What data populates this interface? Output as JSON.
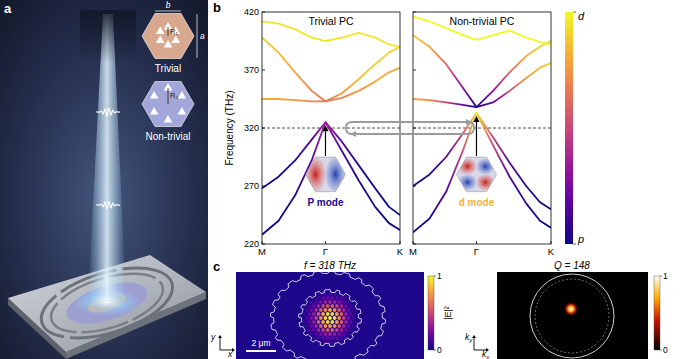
{
  "figure": {
    "panel_labels": [
      "a",
      "b",
      "c"
    ]
  },
  "panel_a": {
    "cells": [
      {
        "label": "Trivial",
        "radius": "R₁"
      },
      {
        "label": "Non-trivial",
        "radius": "R₂"
      }
    ],
    "dimensions": [
      "b",
      "a"
    ]
  },
  "chart_data": [
    {
      "type": "line",
      "title": "Trivial PC",
      "ylabel": "Frequency (THz)",
      "xlim": [
        0,
        1
      ],
      "xticks": [
        {
          "value": 0,
          "label": "M"
        },
        {
          "value": 0.46,
          "label": "Γ"
        },
        {
          "value": 1,
          "label": "K"
        }
      ],
      "ylim": [
        220,
        420
      ],
      "yticks": [
        220,
        270,
        320,
        370,
        420
      ],
      "hline": 320,
      "inset": "P mode",
      "x": [
        0,
        0.12,
        0.24,
        0.36,
        0.46,
        0.58,
        0.7,
        0.82,
        0.92,
        1
      ],
      "series": [
        {
          "values": [
            268,
            278,
            292,
            310,
            325,
            308,
            288,
            268,
            252,
            245
          ],
          "character": [
            0,
            0,
            0.05,
            0.15,
            0.35,
            0.15,
            0.05,
            0,
            0,
            0
          ]
        },
        {
          "values": [
            228,
            240,
            262,
            292,
            325,
            300,
            275,
            252,
            238,
            232
          ],
          "character": [
            0,
            0,
            0.05,
            0.15,
            0.35,
            0.15,
            0.05,
            0,
            0,
            0
          ]
        },
        {
          "values": [
            345,
            345,
            344,
            343,
            343,
            346,
            352,
            360,
            368,
            372
          ],
          "character": [
            0.8,
            0.8,
            0.75,
            0.7,
            0.65,
            0.7,
            0.75,
            0.8,
            0.8,
            0.8
          ]
        },
        {
          "values": [
            398,
            385,
            368,
            352,
            343,
            350,
            362,
            375,
            385,
            390
          ],
          "character": [
            0.9,
            0.85,
            0.8,
            0.7,
            0.65,
            0.75,
            0.85,
            0.9,
            0.9,
            0.9
          ]
        },
        {
          "values": [
            412,
            410,
            405,
            398,
            395,
            398,
            402,
            398,
            392,
            390
          ],
          "character": [
            0.95,
            0.95,
            0.95,
            0.95,
            0.95,
            0.95,
            0.95,
            0.95,
            0.95,
            0.95
          ]
        }
      ]
    },
    {
      "type": "line",
      "title": "Non-trivial PC",
      "tick_labels": "x",
      "xlim": [
        0,
        1
      ],
      "xticks": [
        {
          "value": 0,
          "label": "M"
        },
        {
          "value": 0.46,
          "label": "Γ"
        },
        {
          "value": 1,
          "label": "K"
        }
      ],
      "ylim": [
        220,
        420
      ],
      "yticks": [
        220,
        270,
        320,
        370,
        420
      ],
      "hline": 320,
      "inset": "d mode",
      "x": [
        0,
        0.12,
        0.24,
        0.36,
        0.46,
        0.58,
        0.7,
        0.82,
        0.92,
        1
      ],
      "series": [
        {
          "values": [
            270,
            280,
            295,
            315,
            333,
            312,
            290,
            270,
            256,
            250
          ],
          "character": [
            0,
            0.05,
            0.15,
            0.5,
            0.95,
            0.5,
            0.15,
            0.05,
            0,
            0
          ]
        },
        {
          "values": [
            230,
            242,
            265,
            300,
            333,
            305,
            278,
            255,
            240,
            234
          ],
          "character": [
            0,
            0.05,
            0.15,
            0.5,
            0.95,
            0.5,
            0.15,
            0.05,
            0,
            0
          ]
        },
        {
          "values": [
            345,
            344,
            342,
            340,
            338,
            342,
            352,
            363,
            372,
            376
          ],
          "character": [
            0.8,
            0.7,
            0.5,
            0.2,
            0.05,
            0.2,
            0.5,
            0.75,
            0.85,
            0.9
          ]
        },
        {
          "values": [
            400,
            390,
            375,
            355,
            338,
            352,
            368,
            382,
            390,
            395
          ],
          "character": [
            0.9,
            0.8,
            0.6,
            0.3,
            0.05,
            0.3,
            0.6,
            0.8,
            0.9,
            0.9
          ]
        },
        {
          "values": [
            416,
            412,
            406,
            400,
            396,
            400,
            404,
            398,
            394,
            392
          ],
          "character": [
            1,
            1,
            1,
            1,
            1,
            1,
            1,
            1,
            1,
            1
          ]
        }
      ]
    }
  ],
  "band_colorbar": {
    "range": [
      0,
      1
    ],
    "ticks": [
      {
        "value": 0,
        "label": "p"
      },
      {
        "value": 1,
        "label": "d"
      }
    ]
  },
  "panel_c": [
    {
      "title": "f = 318 THz",
      "scale_bar": "2 μm",
      "axes": [
        {
          "symbol": "x",
          "subscript": ""
        },
        {
          "symbol": "y",
          "subscript": ""
        }
      ],
      "colorbar": {
        "label": "|E|²",
        "range": [
          0,
          1
        ],
        "ticks": [
          0,
          1
        ]
      }
    },
    {
      "title": "Q = 148",
      "axes": [
        {
          "symbol": "k",
          "subscript": "x"
        },
        {
          "symbol": "k",
          "subscript": "y"
        }
      ],
      "colorbar": {
        "range": [
          0,
          1
        ],
        "ticks": [
          0,
          1
        ]
      }
    }
  ]
}
